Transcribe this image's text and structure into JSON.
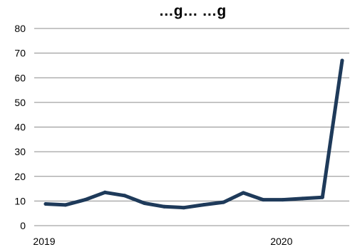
{
  "chart_data": {
    "type": "line",
    "title": "…g… …g",
    "xlabel": "",
    "ylabel": "",
    "ylim": [
      0,
      80
    ],
    "y_ticks": [
      "0",
      "10",
      "20",
      "30",
      "40",
      "50",
      "60",
      "70",
      "80"
    ],
    "x_tick_labels": [
      {
        "label": "2019",
        "index": 0
      },
      {
        "label": "2020",
        "index": 12
      }
    ],
    "grid": true,
    "legend": "none",
    "series": [
      {
        "color": "#1e3a5a",
        "values": [
          8.8,
          8.4,
          10.5,
          13.5,
          12.2,
          9.1,
          7.7,
          7.3,
          8.5,
          9.5,
          13.3,
          10.5,
          10.5,
          11.0,
          11.5,
          67.0
        ]
      }
    ]
  }
}
